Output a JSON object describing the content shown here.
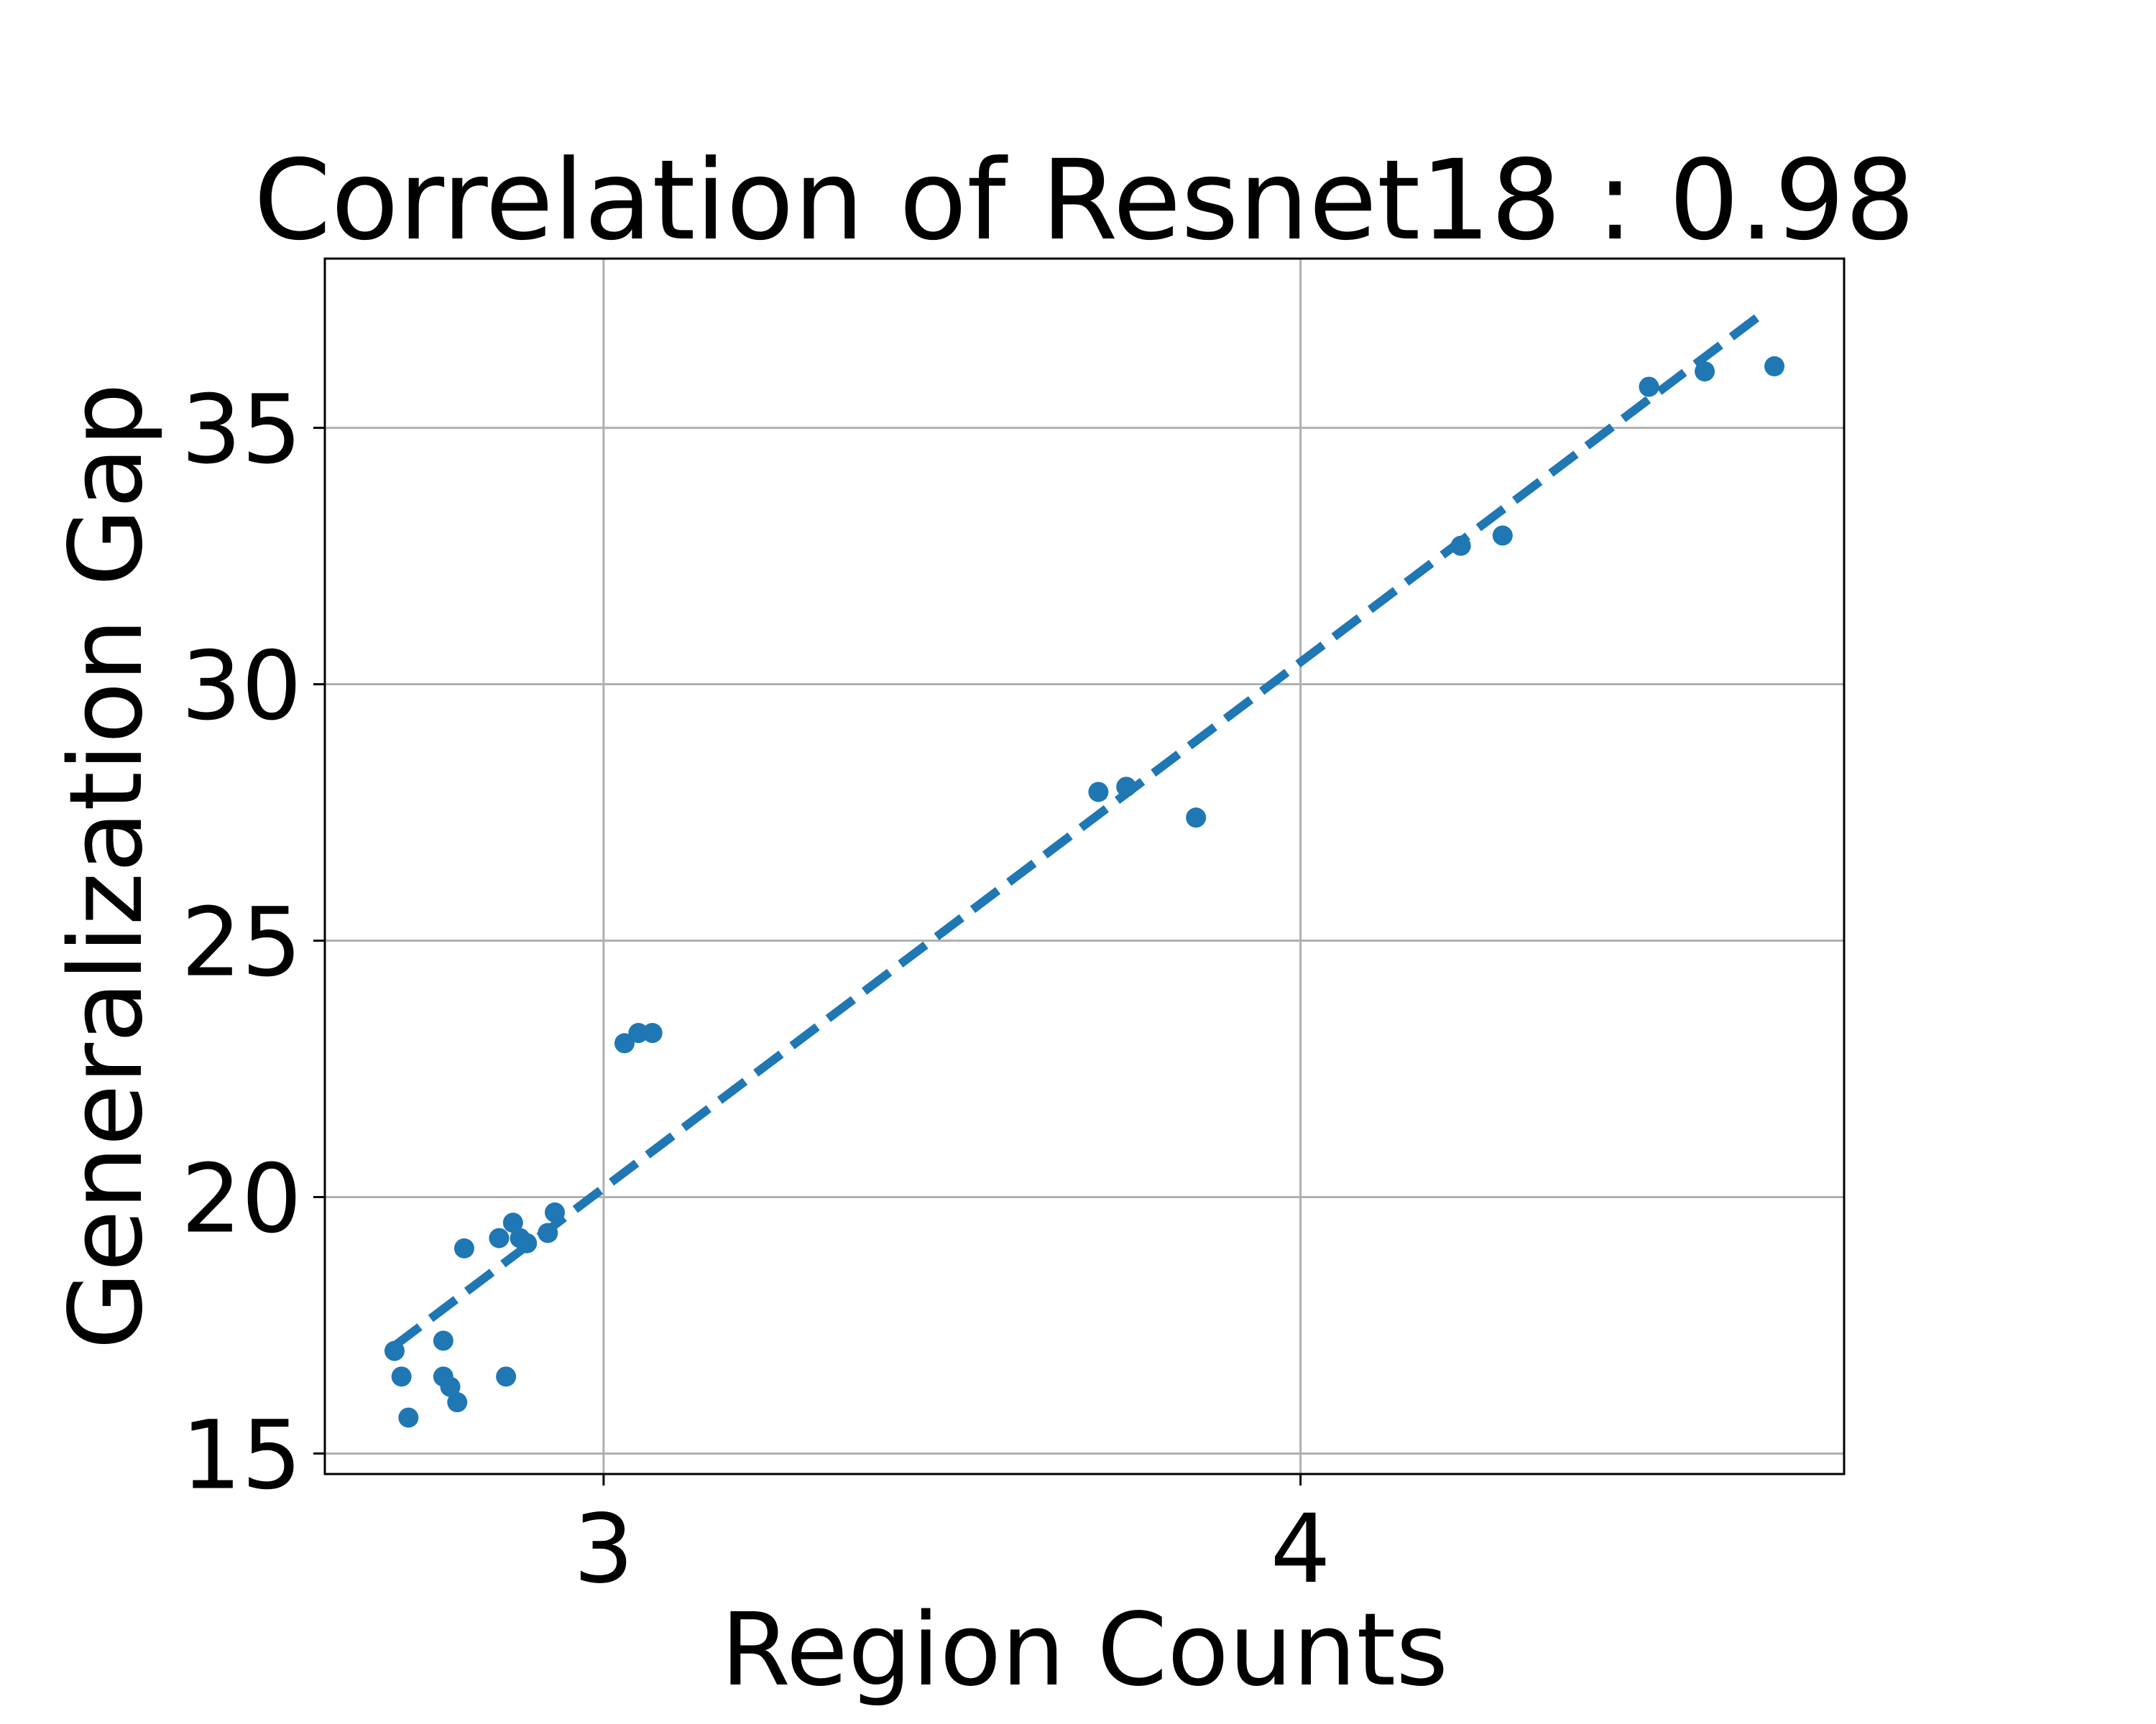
{
  "chart_data": {
    "type": "scatter",
    "title": "Correlation of Resnet18 : 0.98",
    "xlabel": "Region Counts",
    "ylabel": "Generalization Gap",
    "xlim": [
      2.6,
      4.78
    ],
    "ylim": [
      14.6,
      38.3
    ],
    "x_ticks": [
      3,
      4
    ],
    "y_ticks": [
      15,
      20,
      25,
      30,
      35
    ],
    "grid": true,
    "color": "#1f77b4",
    "series": [
      {
        "points": [
          {
            "x": 2.7,
            "y": 17.0
          },
          {
            "x": 2.71,
            "y": 16.5
          },
          {
            "x": 2.72,
            "y": 15.7
          },
          {
            "x": 2.77,
            "y": 16.5
          },
          {
            "x": 2.77,
            "y": 17.2
          },
          {
            "x": 2.78,
            "y": 16.3
          },
          {
            "x": 2.79,
            "y": 16.0
          },
          {
            "x": 2.8,
            "y": 19.0
          },
          {
            "x": 2.85,
            "y": 19.2
          },
          {
            "x": 2.86,
            "y": 16.5
          },
          {
            "x": 2.87,
            "y": 19.5
          },
          {
            "x": 2.88,
            "y": 19.2
          },
          {
            "x": 2.89,
            "y": 19.1
          },
          {
            "x": 2.92,
            "y": 19.3
          },
          {
            "x": 2.93,
            "y": 19.7
          },
          {
            "x": 3.03,
            "y": 23.0
          },
          {
            "x": 3.05,
            "y": 23.2
          },
          {
            "x": 3.07,
            "y": 23.2
          },
          {
            "x": 3.71,
            "y": 27.9
          },
          {
            "x": 3.75,
            "y": 28.0
          },
          {
            "x": 3.85,
            "y": 27.4
          },
          {
            "x": 4.23,
            "y": 32.7
          },
          {
            "x": 4.29,
            "y": 32.9
          },
          {
            "x": 4.5,
            "y": 35.8
          },
          {
            "x": 4.58,
            "y": 36.1
          },
          {
            "x": 4.68,
            "y": 36.2
          }
        ]
      }
    ],
    "trend_line": {
      "style": "dashed",
      "x": [
        2.7,
        4.66
      ],
      "y": [
        17.1,
        37.2
      ]
    }
  }
}
